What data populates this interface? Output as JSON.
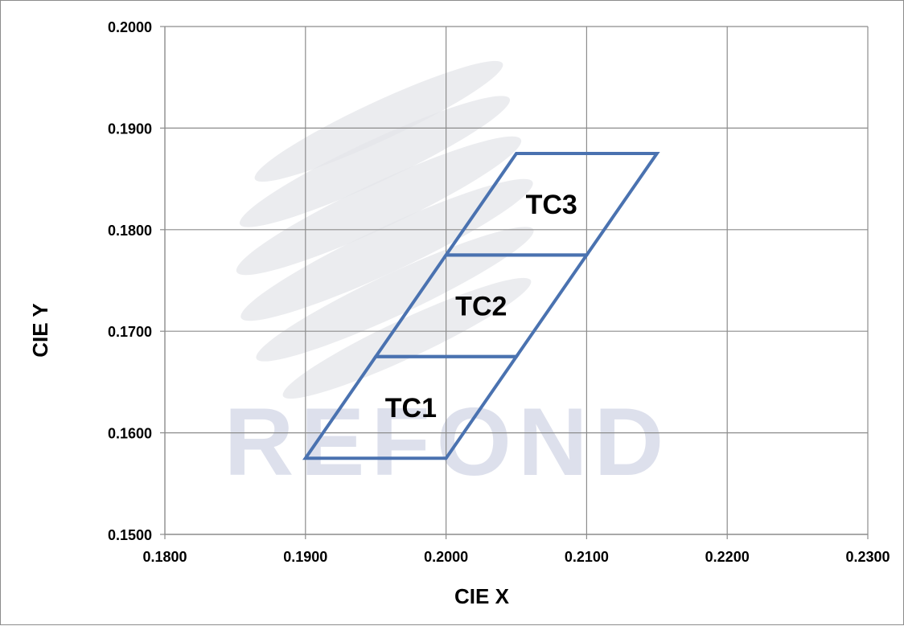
{
  "chart_data": {
    "type": "line",
    "title": "",
    "xlabel": "CIE  X",
    "ylabel": "CIE Y",
    "xlim": [
      0.18,
      0.23
    ],
    "ylim": [
      0.15,
      0.2
    ],
    "x_ticks": [
      "0.1800",
      "0.1900",
      "0.2000",
      "0.2100",
      "0.2200",
      "0.2300"
    ],
    "y_ticks": [
      "0.1500",
      "0.1600",
      "0.1700",
      "0.1800",
      "0.1900",
      "0.2000"
    ],
    "grid": true,
    "legend": "none",
    "series_color": "#4a72b0",
    "watermark": "REFOND",
    "regions": [
      {
        "name": "TC1",
        "points": [
          [
            0.19,
            0.1575
          ],
          [
            0.2,
            0.1575
          ],
          [
            0.205,
            0.1675
          ],
          [
            0.195,
            0.1675
          ]
        ]
      },
      {
        "name": "TC2",
        "points": [
          [
            0.195,
            0.1675
          ],
          [
            0.205,
            0.1675
          ],
          [
            0.21,
            0.1775
          ],
          [
            0.2,
            0.1775
          ]
        ]
      },
      {
        "name": "TC3",
        "points": [
          [
            0.2,
            0.1775
          ],
          [
            0.21,
            0.1775
          ],
          [
            0.215,
            0.1875
          ],
          [
            0.205,
            0.1875
          ]
        ]
      }
    ]
  }
}
